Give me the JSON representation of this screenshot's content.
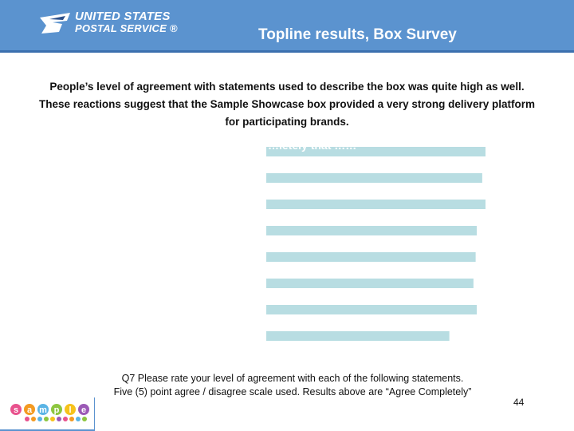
{
  "header": {
    "logo_line1": "UNITED STATES",
    "logo_line2": "POSTAL SERVICE ®",
    "title": "Topline results, Box Survey",
    "brand_color": "#5b93cf"
  },
  "summary": {
    "line1": "People’s level of agreement with statements used to describe the box was quite high as well.",
    "line2": "These reactions suggest that the Sample Showcase box provided a very strong delivery platform",
    "line3": "for participating brands."
  },
  "chart_data": {
    "type": "bar",
    "orientation": "horizontal",
    "title": "…letely that ……",
    "categories": [
      "",
      "",
      "",
      "",
      "",
      "",
      "",
      ""
    ],
    "values": [
      100,
      98.5,
      100,
      96,
      95.5,
      94.5,
      96,
      83.5
    ],
    "value_unit": "relative bar length (percent of longest bar)",
    "bar_color": "#b8dde2",
    "grid": false,
    "legend": "none"
  },
  "footnote": {
    "line1": "Q7  Please rate your level of agreement with each of the following statements.",
    "line2": "Five (5) point agree  / disagree scale used.   Results above are “Agree Completely”"
  },
  "page_number": "44",
  "footer_logo": {
    "top_letters": [
      "s",
      "a",
      "m",
      "p",
      "l",
      "e"
    ],
    "top_colors": [
      "#e8528d",
      "#f39a21",
      "#5ab4e5",
      "#8dc63f",
      "#f6c21b",
      "#9b59b6"
    ],
    "dot_colors": [
      "#e8528d",
      "#f39a21",
      "#5ab4e5",
      "#8dc63f",
      "#f6c21b",
      "#9b59b6",
      "#e8528d",
      "#f39a21",
      "#5ab4e5",
      "#8dc63f"
    ]
  }
}
